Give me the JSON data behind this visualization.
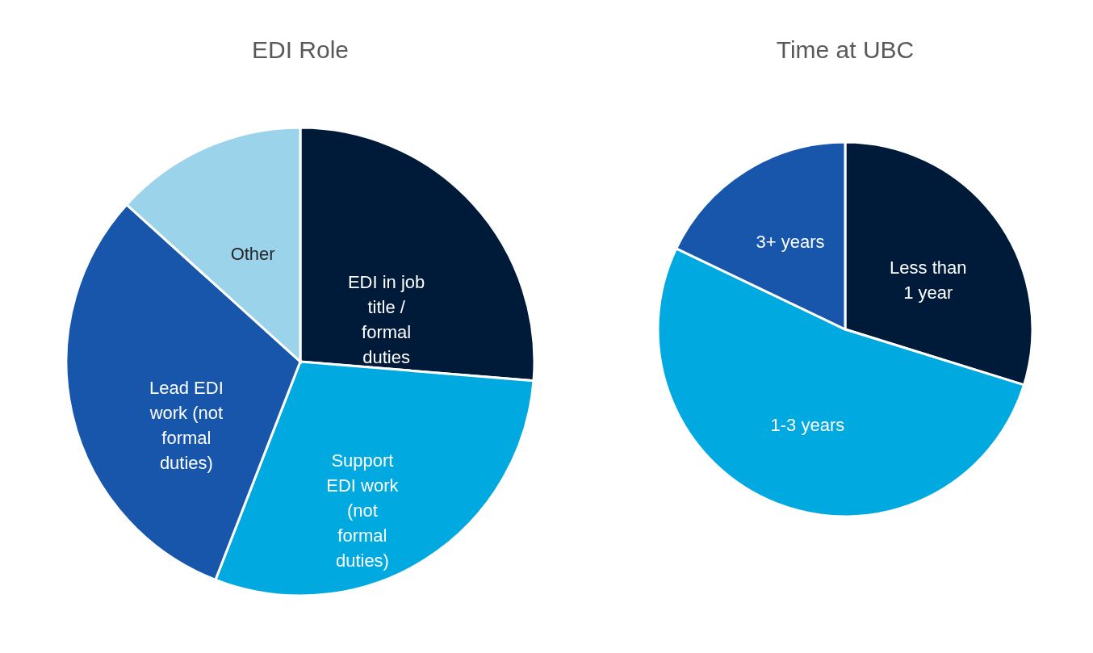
{
  "chart_data": [
    {
      "type": "pie",
      "title": "EDI Role",
      "categories": [
        "EDI in job title / formal duties",
        "Support EDI work (not formal duties)",
        "Lead EDI work (not formal duties)",
        "Other"
      ],
      "values": [
        26.3,
        29.6,
        30.8,
        13.3
      ],
      "colors": [
        "#001a3a",
        "#00a9e0",
        "#1756ab",
        "#9ad3ea"
      ]
    },
    {
      "type": "pie",
      "title": "Time at UBC",
      "categories": [
        "Less than 1 year",
        "1-3 years",
        "3+ years"
      ],
      "values": [
        29.8,
        52.3,
        17.9
      ],
      "colors": [
        "#001a3a",
        "#00a9e0",
        "#1756ab"
      ]
    }
  ]
}
